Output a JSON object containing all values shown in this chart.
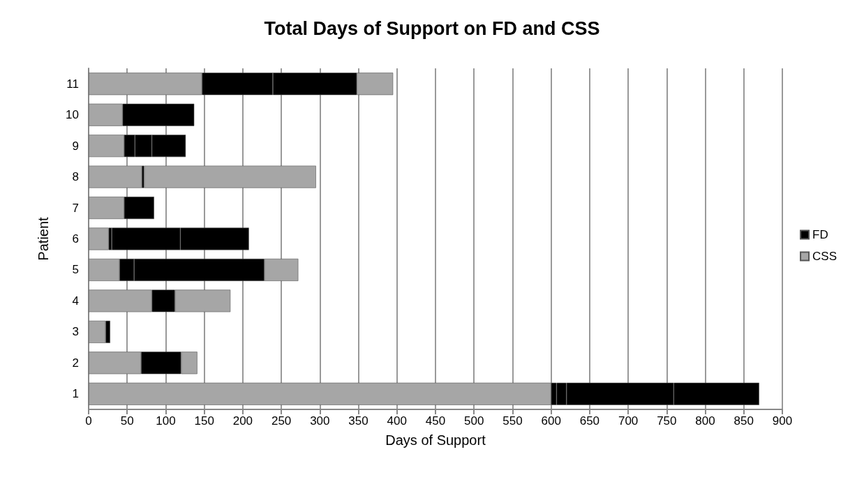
{
  "chart_data": {
    "type": "bar",
    "title": "Total Days of Support on FD and CSS",
    "xlabel": "Days of Support",
    "ylabel": "Patient",
    "orientation": "horizontal",
    "stacked": true,
    "categories": [
      "11",
      "10",
      "9",
      "8",
      "7",
      "6",
      "5",
      "4",
      "3",
      "2",
      "1"
    ],
    "series": [
      {
        "name": "CSS",
        "color": "#a6a6a6",
        "values": [
          147,
          44,
          46,
          69,
          46,
          26,
          40,
          82,
          22,
          68,
          600
        ]
      },
      {
        "name": "FD",
        "color": "#000000",
        "values": [
          92,
          93,
          14,
          3,
          39,
          4,
          19,
          30,
          6,
          52,
          7
        ]
      },
      {
        "colors": [
          "#000000",
          "#000000",
          "#000000",
          "#a6a6a6",
          "#000000",
          "#000000",
          "#000000",
          "#a6a6a6",
          "#000000",
          "#a6a6a6",
          "#000000"
        ],
        "values": [
          109,
          null,
          22,
          223,
          null,
          89,
          169,
          72,
          null,
          21,
          13
        ]
      },
      {
        "colors": [
          "#a6a6a6",
          "#000000",
          "#000000",
          "#000000",
          "#000000",
          "#000000",
          "#a6a6a6",
          "#000000",
          "#000000",
          "#000000",
          "#000000"
        ],
        "values": [
          47,
          null,
          44,
          null,
          null,
          89,
          44,
          null,
          null,
          null,
          139
        ]
      },
      {
        "colors": [
          "#000000",
          "#000000",
          "#000000",
          "#000000",
          "#000000",
          "#000000",
          "#000000",
          "#000000",
          "#000000",
          "#000000",
          "#000000"
        ],
        "values": [
          null,
          null,
          null,
          null,
          null,
          null,
          null,
          null,
          null,
          null,
          111
        ]
      }
    ],
    "xlim": [
      0,
      900
    ],
    "xticks": [
      0,
      50,
      100,
      150,
      200,
      250,
      300,
      350,
      400,
      450,
      500,
      550,
      600,
      650,
      700,
      750,
      800,
      850,
      900
    ],
    "grid": "x",
    "legend": "right"
  }
}
